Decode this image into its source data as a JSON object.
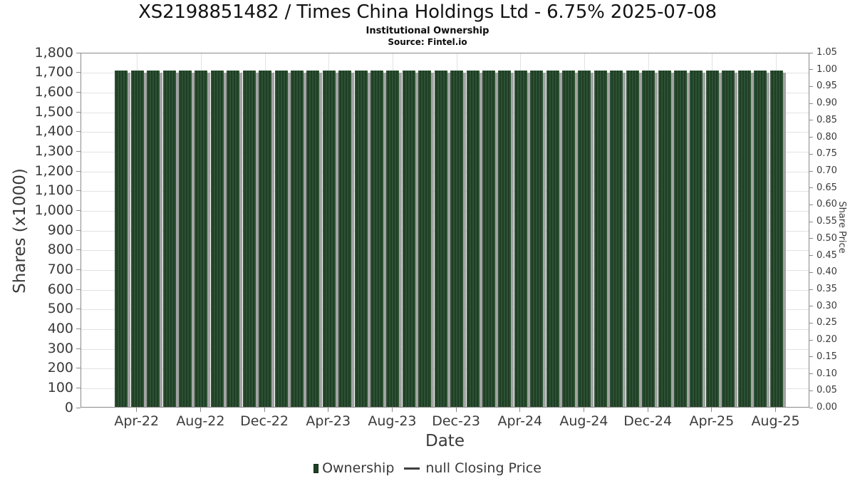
{
  "header": {
    "title": "XS2198851482 / Times China Holdings Ltd - 6.75% 2025-07-08",
    "subtitle": "Institutional Ownership",
    "source": "Source: Fintel.io"
  },
  "chart_data": {
    "type": "bar",
    "title": "XS2198851482 / Times China Holdings Ltd - 6.75% 2025-07-08",
    "subtitle": "Institutional Ownership",
    "source": "Source: Fintel.io",
    "xlabel": "Date",
    "ylabel_left": "Shares (x1000)",
    "ylabel_right": "Share Price",
    "grid": true,
    "legend_position": "bottom",
    "categories": [
      "Mar-22",
      "Apr-22",
      "May-22",
      "Jun-22",
      "Jul-22",
      "Aug-22",
      "Sep-22",
      "Oct-22",
      "Nov-22",
      "Dec-22",
      "Jan-23",
      "Feb-23",
      "Mar-23",
      "Apr-23",
      "May-23",
      "Jun-23",
      "Jul-23",
      "Aug-23",
      "Sep-23",
      "Oct-23",
      "Nov-23",
      "Dec-23",
      "Jan-24",
      "Feb-24",
      "Mar-24",
      "Apr-24",
      "May-24",
      "Jun-24",
      "Jul-24",
      "Aug-24",
      "Sep-24",
      "Oct-24",
      "Nov-24",
      "Dec-24",
      "Jan-25",
      "Feb-25",
      "Mar-25",
      "Apr-25",
      "May-25",
      "Jun-25",
      "Jul-25",
      "Aug-25"
    ],
    "series": [
      {
        "name": "Ownership",
        "type": "bar",
        "color": "#2d5233",
        "values": [
          1712,
          1712,
          1712,
          1712,
          1712,
          1712,
          1712,
          1712,
          1712,
          1712,
          1712,
          1712,
          1712,
          1712,
          1712,
          1712,
          1712,
          1712,
          1712,
          1712,
          1712,
          1712,
          1712,
          1712,
          1712,
          1712,
          1712,
          1712,
          1712,
          1712,
          1712,
          1712,
          1712,
          1712,
          1712,
          1712,
          1712,
          1712,
          1712,
          1712,
          1712,
          1712
        ]
      },
      {
        "name": "null Closing Price",
        "type": "line",
        "color": "#404040",
        "values": null
      }
    ],
    "left_axis": {
      "min": 0,
      "max": 1800,
      "step": 100,
      "tick_labels": [
        "0",
        "100",
        "200",
        "300",
        "400",
        "500",
        "600",
        "700",
        "800",
        "900",
        "1,000",
        "1,100",
        "1,200",
        "1,300",
        "1,400",
        "1,500",
        "1,600",
        "1,700",
        "1,800"
      ]
    },
    "right_axis": {
      "min": 0,
      "max": 1.05,
      "step": 0.05,
      "tick_labels": [
        "0.00",
        "0.05",
        "0.10",
        "0.15",
        "0.20",
        "0.25",
        "0.30",
        "0.35",
        "0.40",
        "0.45",
        "0.50",
        "0.55",
        "0.60",
        "0.65",
        "0.70",
        "0.75",
        "0.80",
        "0.85",
        "0.90",
        "0.95",
        "1.00",
        "1.05"
      ]
    },
    "x_tick_labels": [
      "Apr-22",
      "Aug-22",
      "Dec-22",
      "Apr-23",
      "Aug-23",
      "Dec-23",
      "Apr-24",
      "Aug-24",
      "Dec-24",
      "Apr-25",
      "Aug-25"
    ],
    "ylim": [
      0,
      1800
    ]
  },
  "legend": {
    "ownership_label": "Ownership",
    "price_label": "null Closing Price"
  },
  "colors": {
    "bar_green": "#2d5233",
    "bar_green_dark": "#1f3e25",
    "bar_shadow": "#a3a3a3",
    "gridline": "#e2e2e2",
    "axis_line": "#8a8a8a",
    "tick_text": "#3b3b3b",
    "title_text": "#131313"
  }
}
